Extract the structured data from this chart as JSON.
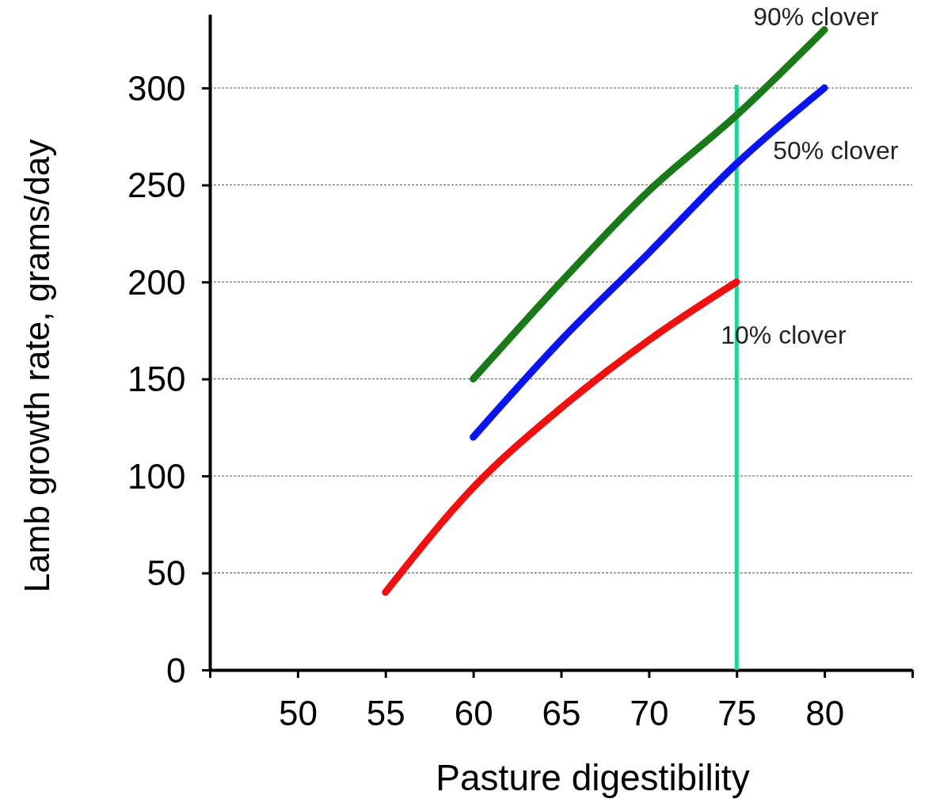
{
  "chart_data": {
    "type": "line",
    "xlabel": "Pasture digestibility",
    "ylabel": "Lamb growth rate,  grams/day",
    "x": [
      55,
      60,
      65,
      70,
      75,
      80
    ],
    "xlim": [
      45,
      85
    ],
    "xticks": [
      {
        "value": 45,
        "label": null
      },
      50,
      55,
      60,
      65,
      70,
      75,
      80,
      {
        "value": 85,
        "label": null
      }
    ],
    "ylim": [
      0,
      338
    ],
    "yticks": [
      0,
      50,
      100,
      150,
      200,
      250,
      300
    ],
    "grid": "y",
    "marker": "none",
    "line_style": "solid",
    "series": [
      {
        "name": "90% clover",
        "color": "#1a7a1a",
        "values": [
          null,
          150,
          200,
          247,
          286,
          330
        ]
      },
      {
        "name": "50% clover",
        "color": "#0a14f0",
        "values": [
          null,
          120,
          170,
          215,
          261,
          300
        ]
      },
      {
        "name": "10% clover",
        "color": "#f01010",
        "values": [
          40,
          94,
          135,
          170,
          200,
          null
        ]
      }
    ],
    "ref_lines": [
      {
        "axis": "x",
        "value": 75,
        "color": "#20d498"
      }
    ]
  }
}
